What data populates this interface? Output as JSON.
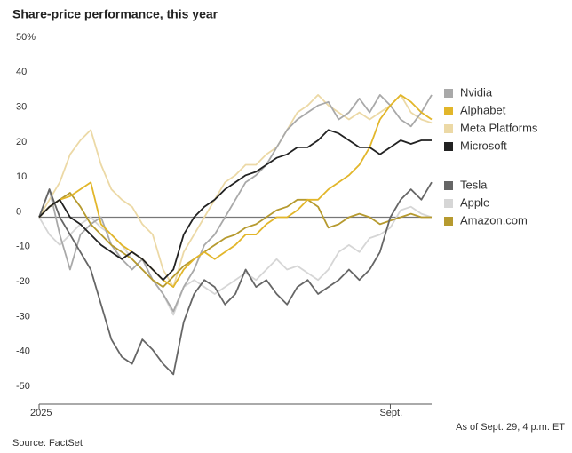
{
  "chart_data": {
    "type": "line",
    "title": "Share-price performance, this year",
    "note": "As of Sept. 29, 4 p.m. ET",
    "source": "Source: FactSet",
    "categories": [
      "2025",
      null,
      null,
      null,
      null,
      null,
      null,
      null,
      null,
      null,
      null,
      null,
      null,
      null,
      null,
      null,
      null,
      null,
      null,
      null,
      null,
      null,
      null,
      null,
      null,
      null,
      null,
      null,
      null,
      null,
      null,
      null,
      null,
      null,
      "Sept.",
      null,
      null,
      null,
      null
    ],
    "ylim": [
      -50,
      50
    ],
    "yticks": [
      {
        "value": 50,
        "label": "50%"
      },
      40,
      30,
      20,
      10,
      0,
      -10,
      -20,
      -30,
      -40,
      -50
    ],
    "series": [
      {
        "name": "Nvidia",
        "color": "#a9a9a9",
        "values": [
          0,
          8,
          -5,
          -15,
          -5,
          -2,
          0,
          -8,
          -12,
          -15,
          -12,
          -18,
          -22,
          -27,
          -20,
          -15,
          -8,
          -5,
          0,
          5,
          10,
          12,
          15,
          20,
          25,
          28,
          30,
          32,
          33,
          28,
          30,
          34,
          30,
          35,
          32,
          28,
          26,
          30,
          35
        ]
      },
      {
        "name": "Alphabet",
        "color": "#e2b62a",
        "values": [
          0,
          3,
          5,
          6,
          8,
          10,
          -2,
          -5,
          -8,
          -10,
          -12,
          -15,
          -18,
          -20,
          -15,
          -12,
          -10,
          -12,
          -10,
          -8,
          -5,
          -5,
          -2,
          0,
          0,
          2,
          5,
          5,
          8,
          10,
          12,
          15,
          20,
          28,
          32,
          35,
          33,
          30,
          28
        ]
      },
      {
        "name": "Meta Platforms",
        "color": "#ecd9a6",
        "values": [
          0,
          5,
          10,
          18,
          22,
          25,
          15,
          8,
          5,
          3,
          -2,
          -5,
          -15,
          -20,
          -10,
          -5,
          0,
          5,
          10,
          12,
          15,
          15,
          18,
          20,
          25,
          30,
          32,
          35,
          32,
          30,
          28,
          30,
          28,
          30,
          32,
          35,
          30,
          28,
          27
        ]
      },
      {
        "name": "Microsoft",
        "color": "#222222",
        "values": [
          0,
          3,
          5,
          0,
          -2,
          -5,
          -8,
          -10,
          -12,
          -10,
          -12,
          -15,
          -18,
          -15,
          -5,
          0,
          3,
          5,
          8,
          10,
          12,
          13,
          15,
          17,
          18,
          20,
          20,
          22,
          25,
          24,
          22,
          20,
          20,
          18,
          20,
          22,
          21,
          22,
          22
        ]
      },
      {
        "name": "Tesla",
        "color": "#666666",
        "values": [
          0,
          8,
          0,
          -5,
          -10,
          -15,
          -25,
          -35,
          -40,
          -42,
          -35,
          -38,
          -42,
          -45,
          -30,
          -22,
          -18,
          -20,
          -25,
          -22,
          -15,
          -20,
          -18,
          -22,
          -25,
          -20,
          -18,
          -22,
          -20,
          -18,
          -15,
          -18,
          -15,
          -10,
          0,
          5,
          8,
          5,
          10
        ]
      },
      {
        "name": "Apple",
        "color": "#d6d6d6",
        "values": [
          0,
          -5,
          -8,
          -5,
          -2,
          0,
          -3,
          -5,
          -8,
          -12,
          -15,
          -18,
          -22,
          -28,
          -20,
          -18,
          -20,
          -22,
          -20,
          -18,
          -16,
          -18,
          -15,
          -12,
          -15,
          -14,
          -16,
          -18,
          -15,
          -10,
          -8,
          -10,
          -6,
          -5,
          -3,
          2,
          3,
          1,
          0
        ]
      },
      {
        "name": "Amazon.com",
        "color": "#b69a2f",
        "values": [
          0,
          3,
          5,
          7,
          3,
          -2,
          -5,
          -8,
          -10,
          -12,
          -15,
          -18,
          -20,
          -17,
          -14,
          -12,
          -10,
          -8,
          -6,
          -5,
          -3,
          -2,
          0,
          2,
          3,
          5,
          5,
          3,
          -3,
          -2,
          0,
          1,
          0,
          -2,
          -1,
          0,
          1,
          0,
          0
        ]
      }
    ]
  }
}
